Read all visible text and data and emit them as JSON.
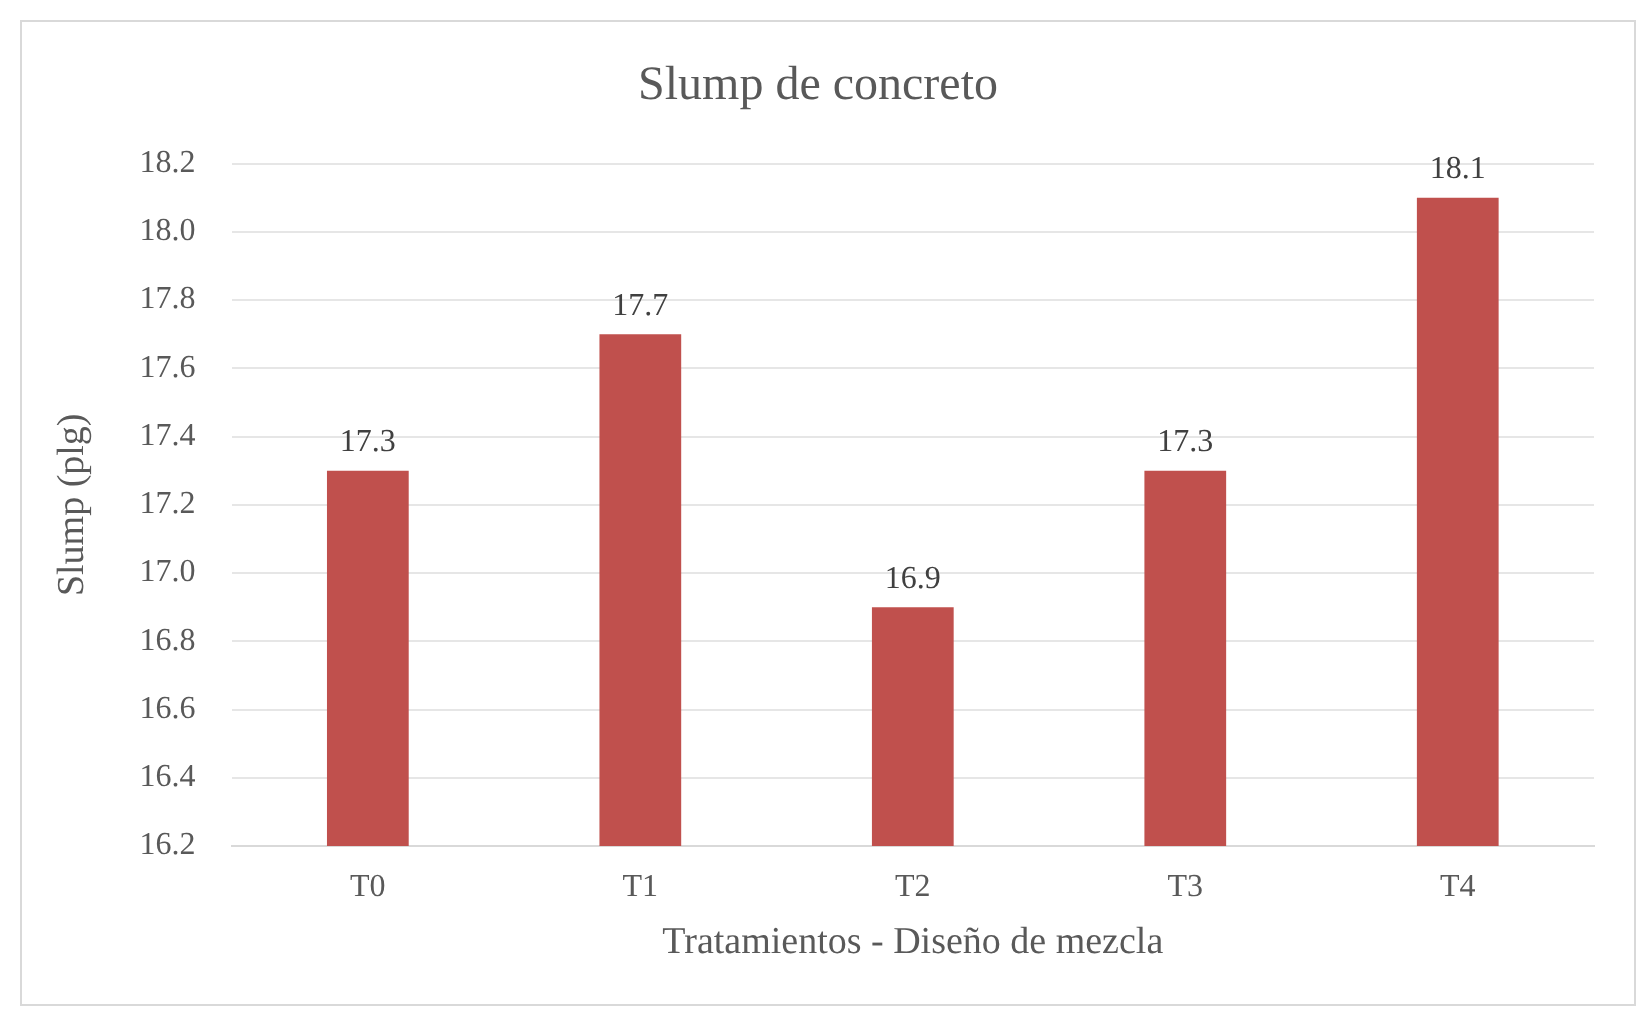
{
  "chart_data": {
    "type": "bar",
    "title": "Slump de concreto",
    "xlabel": "Tratamientos - Diseño de mezcla",
    "ylabel": "Slump (plg)",
    "categories": [
      "T0",
      "T1",
      "T2",
      "T3",
      "T4"
    ],
    "values": [
      17.3,
      17.7,
      16.9,
      17.3,
      18.1
    ],
    "color": "#c0504d",
    "ylim": [
      16.2,
      18.2
    ],
    "yticks": [
      {
        "value": 16.2,
        "label": "16.2"
      },
      {
        "value": 16.4,
        "label": "16.4"
      },
      {
        "value": 16.6,
        "label": "16.6"
      },
      {
        "value": 16.8,
        "label": "16.8"
      },
      {
        "value": 17.0,
        "label": "17.0"
      },
      {
        "value": 17.2,
        "label": "17.2"
      },
      {
        "value": 17.4,
        "label": "17.4"
      },
      {
        "value": 17.6,
        "label": "17.6"
      },
      {
        "value": 17.8,
        "label": "17.8"
      },
      {
        "value": 18.0,
        "label": "18.0"
      },
      {
        "value": 18.2,
        "label": "18.2"
      }
    ],
    "grid": "y",
    "data_labels": true
  }
}
